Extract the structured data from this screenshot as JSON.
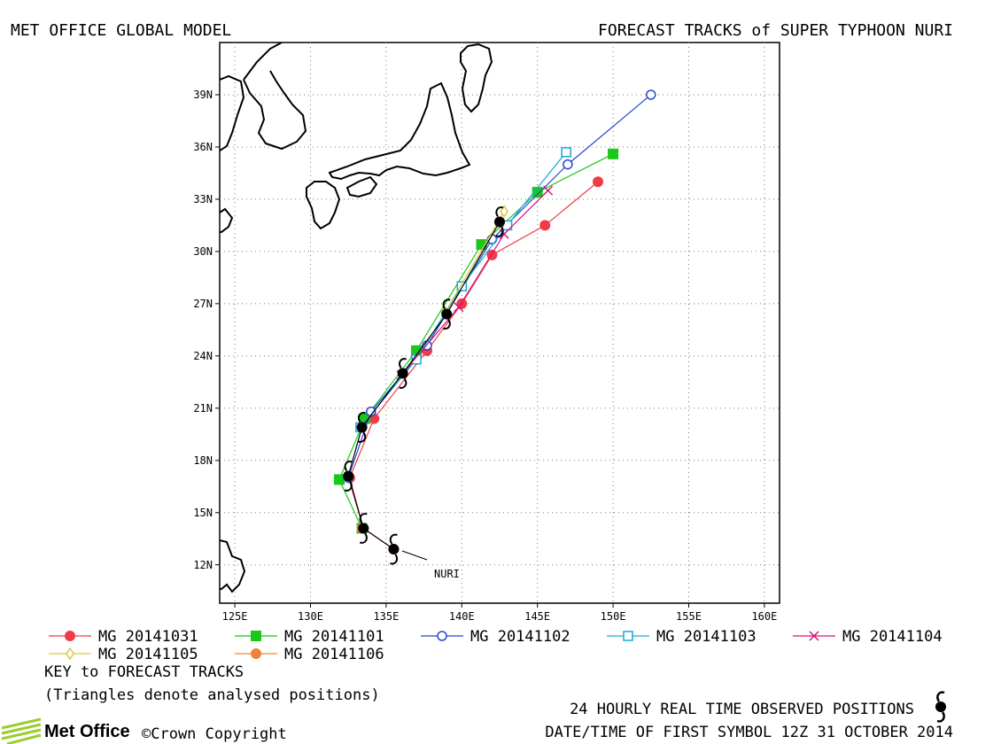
{
  "header": {
    "left": "MET OFFICE GLOBAL MODEL",
    "right": "FORECAST TRACKS of SUPER TYPHOON NURI"
  },
  "footer": {
    "key_title": "KEY to FORECAST TRACKS",
    "key_note": "(Triangles denote analysed positions)",
    "observed": "24 HOURLY REAL TIME OBSERVED POSITIONS",
    "datetime": "DATE/TIME OF FIRST SYMBOL 12Z 31 OCTOBER 2014",
    "logo": "Met Office",
    "copyright": "©Crown Copyright"
  },
  "chart_data": {
    "type": "line",
    "title": "FORECAST TRACKS of SUPER TYPHOON NURI",
    "xlabel": "",
    "ylabel": "",
    "xlim": [
      124,
      161
    ],
    "ylim": [
      9.8,
      42
    ],
    "x_ticks": [
      125,
      130,
      135,
      140,
      145,
      150,
      155,
      160
    ],
    "x_tick_labels": [
      "125E",
      "130E",
      "135E",
      "140E",
      "145E",
      "150E",
      "155E",
      "160E"
    ],
    "y_ticks": [
      12,
      15,
      18,
      21,
      24,
      27,
      30,
      33,
      36,
      39
    ],
    "y_tick_labels": [
      "12N",
      "15N",
      "18N",
      "21N",
      "24N",
      "27N",
      "30N",
      "33N",
      "36N",
      "39N"
    ],
    "grid": true,
    "legend_position": "bottom",
    "storm_label": "NURI",
    "observed": {
      "name": "24 HOURLY REAL TIME OBSERVED POSITIONS",
      "points": [
        [
          135.5,
          12.9
        ],
        [
          133.5,
          14.1
        ],
        [
          132.5,
          17.1
        ],
        [
          133.4,
          19.9
        ],
        [
          136.1,
          23.0
        ],
        [
          139.0,
          26.4
        ],
        [
          142.5,
          31.7
        ]
      ]
    },
    "series": [
      {
        "name": "MG 20141031",
        "color": "#f03c46",
        "marker": "circle-filled",
        "points": [
          [
            135.5,
            12.9
          ],
          [
            133.5,
            14.1
          ],
          [
            132.6,
            17.0
          ],
          [
            134.2,
            20.4
          ],
          [
            137.7,
            24.3
          ],
          [
            140.0,
            27.0
          ],
          [
            142.0,
            29.8
          ],
          [
            145.5,
            31.5
          ],
          [
            149.0,
            34.0
          ]
        ]
      },
      {
        "name": "MG 20141101",
        "color": "#19c819",
        "marker": "square-filled",
        "points": [
          [
            133.4,
            14.1
          ],
          [
            131.9,
            16.9
          ],
          [
            133.6,
            20.4
          ],
          [
            137.0,
            24.3
          ],
          [
            141.3,
            30.4
          ],
          [
            145.0,
            33.4
          ],
          [
            150.0,
            35.6
          ]
        ]
      },
      {
        "name": "MG 20141102",
        "color": "#2846d2",
        "marker": "circle-open",
        "points": [
          [
            132.5,
            17.0
          ],
          [
            134.0,
            20.8
          ],
          [
            137.7,
            24.6
          ],
          [
            142.0,
            30.7
          ],
          [
            147.0,
            35.0
          ],
          [
            152.5,
            39.0
          ]
        ]
      },
      {
        "name": "MG 20141103",
        "color": "#14aadc",
        "marker": "square-open",
        "points": [
          [
            133.3,
            19.9
          ],
          [
            137.0,
            23.8
          ],
          [
            140.0,
            28.0
          ],
          [
            143.0,
            31.5
          ],
          [
            146.9,
            35.7
          ]
        ]
      },
      {
        "name": "MG 20141104",
        "color": "#d21478",
        "marker": "x",
        "points": [
          [
            136.0,
            22.9
          ],
          [
            139.8,
            26.8
          ],
          [
            142.8,
            31.0
          ],
          [
            145.7,
            33.5
          ]
        ]
      },
      {
        "name": "MG 20141105",
        "color": "#dcc83c",
        "marker": "diamond-open",
        "points": [
          [
            138.9,
            26.5
          ],
          [
            142.8,
            32.3
          ]
        ]
      },
      {
        "name": "MG 20141106",
        "color": "#f0823c",
        "marker": "circle-filled",
        "points": [
          [
            133.4,
            14.1
          ]
        ]
      }
    ]
  }
}
